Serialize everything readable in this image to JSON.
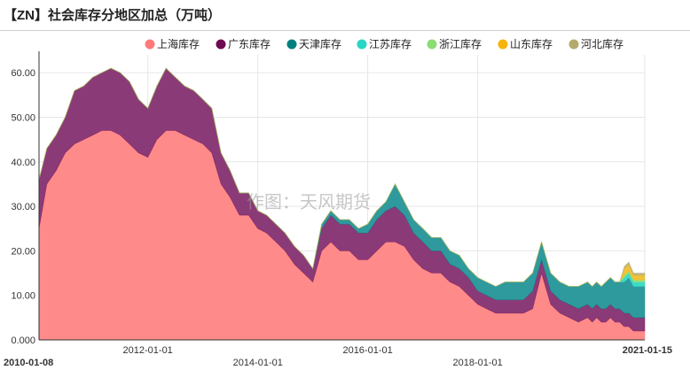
{
  "title": "【ZN】社会库存分地区加总（万吨）",
  "watermark": "作图：天风期货",
  "chart_data": {
    "type": "area",
    "stacked": true,
    "x_range": [
      "2010-01-08",
      "2021-01-15"
    ],
    "x_ticks": [
      {
        "label": "2010-01-08",
        "date": "2010-01-08",
        "row": 1,
        "bold": true
      },
      {
        "label": "2012-01-01",
        "date": "2012-01-01",
        "row": 0,
        "bold": false
      },
      {
        "label": "2014-01-01",
        "date": "2014-01-01",
        "row": 1,
        "bold": false
      },
      {
        "label": "2016-01-01",
        "date": "2016-01-01",
        "row": 0,
        "bold": false
      },
      {
        "label": "2018-01-01",
        "date": "2018-01-01",
        "row": 1,
        "bold": false
      },
      {
        "label": "2021-01-15",
        "date": "2021-01-15",
        "row": 0,
        "bold": true
      }
    ],
    "ylim": [
      0,
      64
    ],
    "y_ticks": [
      "0.000",
      "10.00",
      "20.00",
      "30.00",
      "40.00",
      "50.00",
      "60.00"
    ],
    "y_tick_values": [
      0,
      10,
      20,
      30,
      40,
      50,
      60
    ],
    "grid": true,
    "legend_position": "top-right",
    "series": [
      {
        "name": "上海库存",
        "color": "#ff7b7b",
        "fill": "#ff8a8a",
        "values": [
          25,
          35,
          38,
          42,
          44,
          45,
          46,
          47,
          47,
          46,
          44,
          42,
          41,
          45,
          47,
          47,
          46,
          45,
          44,
          42,
          35,
          32,
          28,
          28,
          25,
          24,
          22,
          20,
          17,
          15,
          13,
          20,
          22,
          20,
          20,
          18,
          18,
          20,
          22,
          22,
          21,
          18,
          16,
          15,
          15,
          13,
          12,
          10,
          8,
          7,
          6,
          6,
          6,
          6,
          7,
          15,
          8,
          6,
          5,
          4,
          5,
          4,
          5,
          4,
          4,
          5,
          4,
          4,
          3,
          3,
          2,
          2,
          2
        ]
      },
      {
        "name": "广东库存",
        "color": "#6d0a52",
        "fill": "#8b3a78",
        "values": [
          11,
          8,
          8,
          8,
          12,
          12,
          13,
          13,
          14,
          14,
          14,
          12,
          11,
          12,
          14,
          12,
          11,
          11,
          10,
          10,
          7,
          6,
          5,
          5,
          4,
          4,
          4,
          4,
          4,
          4,
          3,
          5,
          6,
          6,
          6,
          6,
          6,
          7,
          7,
          8,
          7,
          6,
          6,
          5,
          5,
          4,
          4,
          4,
          3,
          3,
          3,
          3,
          3,
          3,
          4,
          3,
          3,
          3,
          3,
          3,
          3,
          3,
          3,
          3,
          3,
          3,
          3,
          3,
          3,
          3,
          3,
          3,
          3
        ]
      },
      {
        "name": "天津库存",
        "color": "#007f7f",
        "fill": "#2e9a9e",
        "values": [
          0,
          0,
          0,
          0,
          0,
          0,
          0,
          0,
          0,
          0,
          0,
          0,
          0,
          0,
          0,
          0,
          0,
          0,
          0,
          0,
          0,
          0,
          0,
          0,
          0,
          0,
          0,
          0,
          0,
          0,
          0,
          1,
          1,
          1,
          1,
          1,
          2,
          2,
          2,
          5,
          3,
          3,
          3,
          3,
          3,
          3,
          3,
          2,
          3,
          3,
          3,
          4,
          4,
          4,
          4,
          4,
          4,
          4,
          4,
          5,
          5,
          5,
          5,
          5,
          6,
          6,
          6,
          6,
          7,
          8,
          7,
          7,
          7
        ]
      },
      {
        "name": "江苏库存",
        "color": "#27d6c4",
        "fill": "#3fdcc6",
        "values": [
          0,
          0,
          0,
          0,
          0,
          0,
          0,
          0,
          0,
          0,
          0,
          0,
          0,
          0,
          0,
          0,
          0,
          0,
          0,
          0,
          0,
          0,
          0,
          0,
          0,
          0,
          0,
          0,
          0,
          0,
          0,
          0,
          0,
          0,
          0,
          0,
          0,
          0,
          0,
          0,
          0,
          0,
          0,
          0,
          0,
          0,
          0,
          0,
          0,
          0,
          0,
          0,
          0,
          0,
          0,
          0,
          0,
          0,
          0,
          0,
          0,
          0,
          0,
          0,
          0,
          0,
          0,
          0,
          1,
          1,
          1,
          1,
          1
        ]
      },
      {
        "name": "浙江库存",
        "color": "#8bdc72",
        "fill": "#9ae07c",
        "values": [
          0,
          0,
          0,
          0,
          0,
          0,
          0,
          0,
          0,
          0,
          0,
          0,
          0,
          0,
          0,
          0,
          0,
          0,
          0,
          0,
          0,
          0,
          0,
          0,
          0,
          0,
          0,
          0,
          0,
          0,
          0,
          0,
          0,
          0,
          0,
          0,
          0,
          0,
          0,
          0,
          0,
          0,
          0,
          0,
          0,
          0,
          0,
          0,
          0,
          0,
          0,
          0,
          0,
          0,
          0,
          0,
          0,
          0,
          0,
          0,
          0,
          0,
          0,
          0,
          0,
          0,
          0,
          0,
          0.5,
          0.5,
          0.5,
          0.5,
          0.5
        ]
      },
      {
        "name": "山东库存",
        "color": "#f6b50e",
        "fill": "#f3c13a",
        "values": [
          0,
          0,
          0,
          0,
          0,
          0,
          0,
          0,
          0,
          0,
          0,
          0,
          0,
          0,
          0,
          0,
          0,
          0,
          0,
          0,
          0,
          0,
          0,
          0,
          0,
          0,
          0,
          0,
          0,
          0,
          0,
          0,
          0,
          0,
          0,
          0,
          0,
          0,
          0,
          0,
          0,
          0,
          0,
          0,
          0,
          0,
          0,
          0,
          0,
          0,
          0,
          0,
          0,
          0,
          0,
          0,
          0,
          0,
          0,
          0,
          0,
          0,
          0,
          0,
          0,
          0,
          0,
          0,
          1.5,
          1.5,
          1,
          1,
          1
        ]
      },
      {
        "name": "河北库存",
        "color": "#b5a96e",
        "fill": "#c2b77e",
        "values": [
          0,
          0,
          0,
          0,
          0,
          0,
          0,
          0,
          0,
          0,
          0,
          0,
          0,
          0,
          0,
          0,
          0,
          0,
          0,
          0,
          0,
          0,
          0,
          0,
          0,
          0,
          0,
          0,
          0,
          0,
          0,
          0,
          0,
          0,
          0,
          0,
          0,
          0,
          0,
          0,
          0,
          0,
          0,
          0,
          0,
          0,
          0,
          0,
          0,
          0,
          0,
          0,
          0,
          0,
          0,
          0,
          0,
          0,
          0,
          0,
          0,
          0,
          0,
          0,
          0,
          0,
          0,
          0,
          0.5,
          0.5,
          0.5,
          0.5,
          0.5
        ]
      }
    ],
    "x_dates": [
      "2010-01-08",
      "2010-03-01",
      "2010-05-01",
      "2010-07-01",
      "2010-09-01",
      "2010-11-01",
      "2011-01-01",
      "2011-03-01",
      "2011-05-01",
      "2011-07-01",
      "2011-09-01",
      "2011-11-01",
      "2012-01-01",
      "2012-03-01",
      "2012-05-01",
      "2012-07-01",
      "2012-09-01",
      "2012-11-01",
      "2013-01-01",
      "2013-03-01",
      "2013-05-01",
      "2013-07-01",
      "2013-09-01",
      "2013-11-01",
      "2014-01-01",
      "2014-03-01",
      "2014-05-01",
      "2014-07-01",
      "2014-09-01",
      "2014-11-01",
      "2015-01-01",
      "2015-03-01",
      "2015-05-01",
      "2015-07-01",
      "2015-09-01",
      "2015-11-01",
      "2016-01-01",
      "2016-03-01",
      "2016-05-01",
      "2016-07-01",
      "2016-09-01",
      "2016-11-01",
      "2017-01-01",
      "2017-03-01",
      "2017-05-01",
      "2017-07-01",
      "2017-09-01",
      "2017-11-01",
      "2018-01-01",
      "2018-03-01",
      "2018-05-01",
      "2018-07-01",
      "2018-09-01",
      "2018-11-01",
      "2019-01-01",
      "2019-03-01",
      "2019-05-01",
      "2019-07-01",
      "2019-09-01",
      "2019-11-01",
      "2020-01-01",
      "2020-02-01",
      "2020-03-01",
      "2020-04-01",
      "2020-05-01",
      "2020-06-01",
      "2020-07-01",
      "2020-08-01",
      "2020-09-01",
      "2020-10-01",
      "2020-11-01",
      "2020-12-01",
      "2021-01-15"
    ]
  }
}
